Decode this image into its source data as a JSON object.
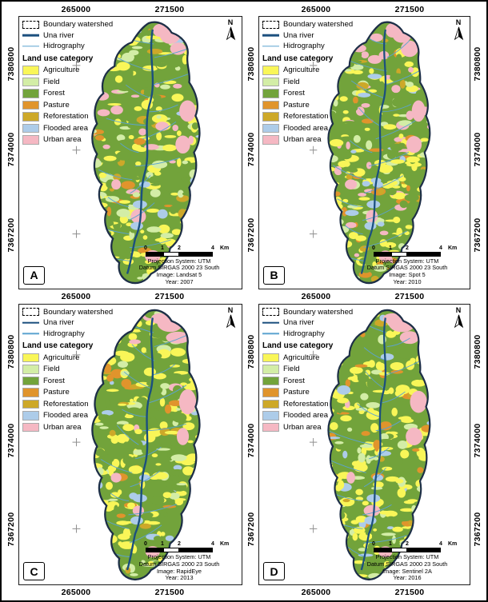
{
  "figure": {
    "axes": {
      "x_ticks": [
        "265000",
        "271500"
      ],
      "y_ticks": [
        "7380800",
        "7374000",
        "7367200"
      ]
    },
    "north_label": "N",
    "legend": {
      "boundary_label": "Boundary watershed",
      "una_river_label": "Una river",
      "hidrography_label": "Hidrography",
      "landuse_header": "Land use category",
      "categories": [
        {
          "label": "Agriculture",
          "color": "#f9f658"
        },
        {
          "label": "Field",
          "color": "#d3eda6"
        },
        {
          "label": "Forest",
          "color": "#72a33b"
        },
        {
          "label": "Pasture",
          "color": "#e0942c"
        },
        {
          "label": "Reforestation",
          "color": "#cda829"
        },
        {
          "label": "Flooded area",
          "color": "#adcce9"
        },
        {
          "label": "Urban area",
          "color": "#f5b8c3"
        }
      ]
    },
    "scalebar": {
      "labels": [
        "0",
        "1",
        "2",
        "4"
      ],
      "unit": "Km"
    },
    "map_colors": {
      "river": "#1b4f7e",
      "hidrography": "#5ba3d0",
      "boundary": "#1d2f47"
    },
    "panels": [
      {
        "letter": "A",
        "info_lines": [
          "Projection System: UTM",
          "Datum SIRGAS 2000 23 South",
          "Image: Landsat 5",
          "Year: 2007"
        ]
      },
      {
        "letter": "B",
        "info_lines": [
          "Projection System: UTM",
          "Datum SIRGAS 2000 23 South",
          "Image: Spot 5",
          "Year: 2010"
        ]
      },
      {
        "letter": "C",
        "info_lines": [
          "Projection System: UTM",
          "Datum SIRGAS 2000 23 South",
          "Image: RapidEye",
          "Year: 2013"
        ]
      },
      {
        "letter": "D",
        "info_lines": [
          "Projection System: UTM",
          "Datum SIRGAS 2000 23 South",
          "Image: Sentinel 2A",
          "Year: 2016"
        ]
      }
    ]
  }
}
